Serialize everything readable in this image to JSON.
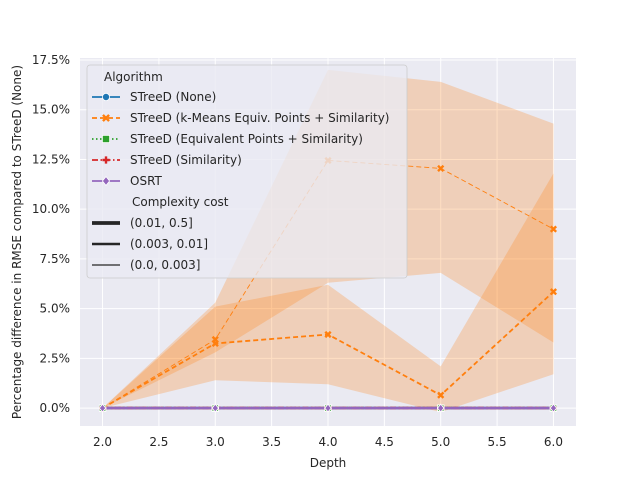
{
  "chart_data": {
    "type": "line",
    "title": "",
    "xlabel": "Depth",
    "ylabel": "Percentage difference in RMSE compared to STreeD (None)",
    "xlim": [
      1.8,
      6.2
    ],
    "ylim": [
      -0.9,
      17.6
    ],
    "x_ticks": [
      2.0,
      2.5,
      3.0,
      3.5,
      4.0,
      4.5,
      5.0,
      5.5,
      6.0
    ],
    "x_tick_labels": [
      "2.0",
      "2.5",
      "3.0",
      "3.5",
      "4.0",
      "4.5",
      "5.0",
      "5.5",
      "6.0"
    ],
    "y_ticks": [
      0,
      2.5,
      5,
      7.5,
      10,
      12.5,
      15,
      17.5
    ],
    "y_tick_labels": [
      "0.0%",
      "2.5%",
      "5.0%",
      "7.5%",
      "10.0%",
      "12.5%",
      "15.0%",
      "17.5%"
    ],
    "grid": true,
    "background": "#eaeaf2",
    "x": [
      2,
      3,
      4,
      5,
      6
    ],
    "series": [
      {
        "algorithm": "STreeD (None)",
        "cost": "(0.01, 0.5]",
        "color": "#1f77b4",
        "marker": "circle",
        "dash": "solid",
        "values": [
          0,
          0,
          0,
          0,
          0
        ]
      },
      {
        "algorithm": "STreeD (None)",
        "cost": "(0.003, 0.01]",
        "color": "#1f77b4",
        "marker": "circle",
        "dash": "solid",
        "values": [
          0,
          0,
          0,
          0,
          0
        ]
      },
      {
        "algorithm": "STreeD (None)",
        "cost": "(0.0, 0.003]",
        "color": "#1f77b4",
        "marker": "circle",
        "dash": "solid",
        "values": [
          0,
          0,
          0,
          0,
          0
        ]
      },
      {
        "algorithm": "STreeD (k-Means Equiv. Points + Similarity)",
        "cost": "(0.01, 0.5]",
        "color": "#ff7f0e",
        "marker": "x",
        "dash": "dashed",
        "values": [
          0,
          0.0,
          0.0,
          0.0,
          0.0
        ]
      },
      {
        "algorithm": "STreeD (k-Means Equiv. Points + Similarity)",
        "cost": "(0.003, 0.01]",
        "color": "#ff7f0e",
        "marker": "x",
        "dash": "dashed",
        "values": [
          0,
          3.25,
          3.7,
          0.65,
          5.85
        ],
        "ci_low": [
          0,
          1.4,
          1.2,
          -0.2,
          1.7
        ],
        "ci_high": [
          0,
          5.1,
          6.2,
          2.1,
          11.8
        ]
      },
      {
        "algorithm": "STreeD (k-Means Equiv. Points + Similarity)",
        "cost": "(0.0, 0.003]",
        "color": "#ff7f0e",
        "marker": "x",
        "dash": "dashed",
        "values": [
          0,
          3.45,
          12.45,
          12.05,
          9.0
        ],
        "ci_low": [
          0,
          2.8,
          6.3,
          6.8,
          3.3
        ],
        "ci_high": [
          0,
          5.3,
          17.0,
          16.4,
          14.3
        ]
      },
      {
        "algorithm": "STreeD (Equivalent Points + Similarity)",
        "cost": "(0.01, 0.5]",
        "color": "#2ca02c",
        "marker": "square",
        "dash": "dotted",
        "values": [
          0,
          0,
          0,
          0,
          0
        ]
      },
      {
        "algorithm": "STreeD (Equivalent Points + Similarity)",
        "cost": "(0.003, 0.01]",
        "color": "#2ca02c",
        "marker": "square",
        "dash": "dotted",
        "values": [
          0,
          0,
          0,
          0,
          0
        ]
      },
      {
        "algorithm": "STreeD (Equivalent Points + Similarity)",
        "cost": "(0.0, 0.003]",
        "color": "#2ca02c",
        "marker": "square",
        "dash": "dotted",
        "values": [
          0,
          0,
          0,
          0,
          0
        ]
      },
      {
        "algorithm": "STreeD (Similarity)",
        "cost": "(0.01, 0.5]",
        "color": "#d62728",
        "marker": "plus",
        "dash": "dashdot",
        "values": [
          0,
          0,
          0,
          0,
          0
        ]
      },
      {
        "algorithm": "STreeD (Similarity)",
        "cost": "(0.003, 0.01]",
        "color": "#d62728",
        "marker": "plus",
        "dash": "dashdot",
        "values": [
          0,
          0,
          0,
          0,
          0
        ]
      },
      {
        "algorithm": "STreeD (Similarity)",
        "cost": "(0.0, 0.003]",
        "color": "#d62728",
        "marker": "plus",
        "dash": "dashdot",
        "values": [
          0,
          0,
          0,
          0,
          0
        ]
      },
      {
        "algorithm": "OSRT",
        "cost": "(0.01, 0.5]",
        "color": "#9467bd",
        "marker": "diamond",
        "dash": "solid",
        "values": [
          0,
          0,
          0,
          0,
          0
        ]
      },
      {
        "algorithm": "OSRT",
        "cost": "(0.003, 0.01]",
        "color": "#9467bd",
        "marker": "diamond",
        "dash": "solid",
        "values": [
          0,
          0,
          0,
          0,
          0
        ]
      },
      {
        "algorithm": "OSRT",
        "cost": "(0.0, 0.003]",
        "color": "#9467bd",
        "marker": "diamond",
        "dash": "solid",
        "values": [
          0,
          0,
          0,
          0,
          0
        ]
      }
    ],
    "legend": {
      "placement": "top-left",
      "algorithm_title": "Algorithm",
      "algorithms": [
        {
          "label": "STreeD (None)",
          "color": "#1f77b4",
          "marker": "circle",
          "dash": "solid"
        },
        {
          "label": "STreeD (k-Means Equiv. Points + Similarity)",
          "color": "#ff7f0e",
          "marker": "x",
          "dash": "dashed"
        },
        {
          "label": "STreeD (Equivalent Points + Similarity)",
          "color": "#2ca02c",
          "marker": "square",
          "dash": "dotted"
        },
        {
          "label": "STreeD (Similarity)",
          "color": "#d62728",
          "marker": "plus",
          "dash": "dashdot"
        },
        {
          "label": "OSRT",
          "color": "#9467bd",
          "marker": "diamond",
          "dash": "solid"
        }
      ],
      "cost_title": "Complexity cost",
      "costs": [
        {
          "label": "(0.01, 0.5]",
          "width": "thick"
        },
        {
          "label": "(0.003, 0.01]",
          "width": "medium"
        },
        {
          "label": "(0.0, 0.003]",
          "width": "thin"
        }
      ]
    }
  }
}
